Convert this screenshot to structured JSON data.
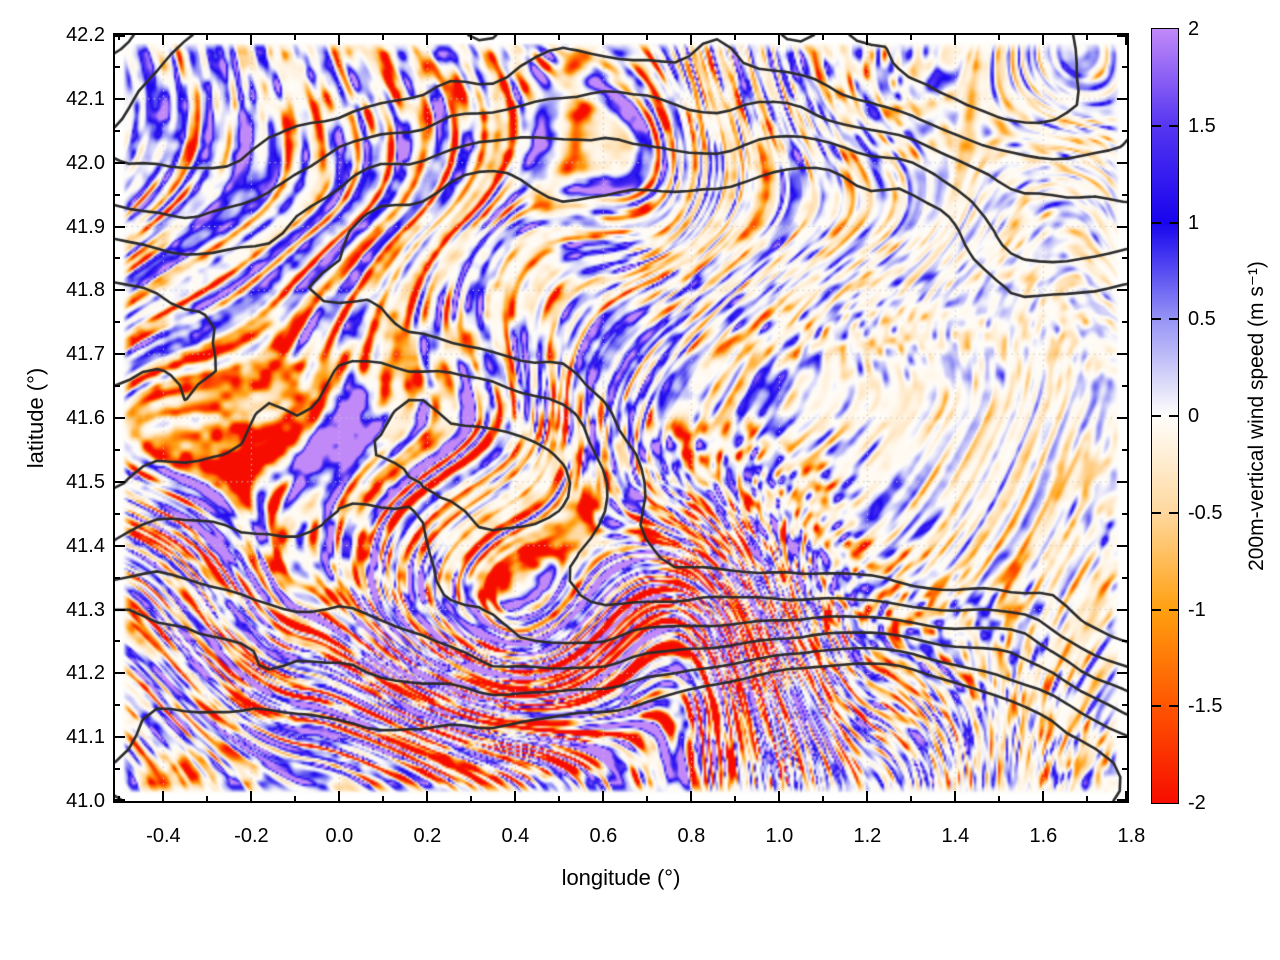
{
  "chart_data": {
    "type": "heatmap",
    "title": "",
    "xlabel": "longitude (°)",
    "ylabel": "latitude (°)",
    "xlim": [
      -0.51,
      1.79
    ],
    "ylim": [
      41.0,
      42.2
    ],
    "x_major_ticks": [
      -0.4,
      -0.2,
      0.0,
      0.2,
      0.4,
      0.6,
      0.8,
      1.0,
      1.2,
      1.4,
      1.6,
      1.8
    ],
    "x_major_labels": [
      "-0.4",
      "-0.2",
      "0.0",
      "0.2",
      "0.4",
      "0.6",
      "0.8",
      "1.0",
      "1.2",
      "1.4",
      "1.6",
      "1.8"
    ],
    "x_minor_step": 0.1,
    "y_major_ticks": [
      41.0,
      41.1,
      41.2,
      41.3,
      41.4,
      41.5,
      41.6,
      41.7,
      41.8,
      41.9,
      42.0,
      42.1,
      42.2
    ],
    "y_major_labels": [
      "41.0",
      "41.1",
      "41.2",
      "41.3",
      "41.4",
      "41.5",
      "41.6",
      "41.7",
      "41.8",
      "41.9",
      "42.0",
      "42.1",
      "42.2"
    ],
    "y_minor_step": 0.05,
    "grid": {
      "style": "dotted",
      "color": "#c6c6c6",
      "at": "major-ticks"
    },
    "frame_color": "#000000",
    "contours": {
      "color": "#2b2b2b",
      "line_width": 2.6,
      "description": "black terrain-elevation contour lines overlaid on the wind field; densely nested along the mountainous southern band and across the northern edge, sparse over the eastern lowland",
      "levels_visible": 6
    },
    "field_description": "filamentary mountain-wave pattern of alternating weak updrafts (blue) and downdrafts (orange) on a near-white background; strongest saturated filaments over the south-central mountains around 0.3-0.9 deg lon, 41.0-41.4 deg lat; palest over the east around 1.2-1.6 deg lon",
    "colorbar": {
      "label": "200m-vertical wind speed (m s⁻¹)",
      "range": [
        -2,
        2
      ],
      "ticks": [
        -2,
        -1.5,
        -1,
        -0.5,
        0,
        0.5,
        1,
        1.5,
        2
      ],
      "tick_labels": [
        "-2",
        "-1.5",
        "-1",
        "-0.5",
        "0",
        "0.5",
        "1",
        "1.5",
        "2"
      ],
      "stops": [
        {
          "v": -2.0,
          "color": "#f70d00"
        },
        {
          "v": -1.5,
          "color": "#ff5500"
        },
        {
          "v": -1.0,
          "color": "#ffa010"
        },
        {
          "v": -0.5,
          "color": "#ffd89e"
        },
        {
          "v": 0.0,
          "color": "#fffefb"
        },
        {
          "v": 0.5,
          "color": "#9694f5"
        },
        {
          "v": 1.0,
          "color": "#1804ee"
        },
        {
          "v": 1.5,
          "color": "#5536f1"
        },
        {
          "v": 2.0,
          "color": "#c189f8"
        }
      ]
    }
  }
}
